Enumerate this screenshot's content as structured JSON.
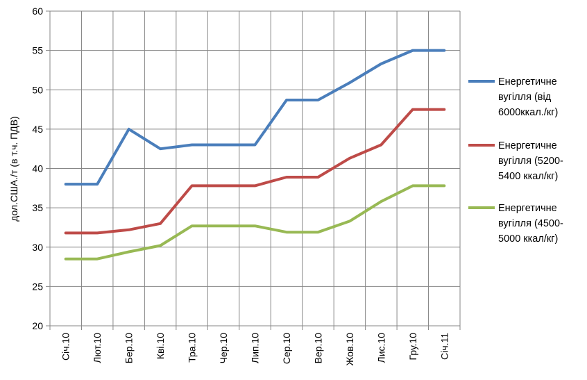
{
  "chart_data": {
    "type": "line",
    "title": "",
    "xlabel": "",
    "ylabel": "дол.США./т (в т.ч. ПДВ)",
    "ylim": [
      20,
      60
    ],
    "yticks": [
      20,
      25,
      30,
      35,
      40,
      45,
      50,
      55,
      60
    ],
    "categories": [
      "Січ.10",
      "Лют.10",
      "Бер.10",
      "Кві.10",
      "Тра.10",
      "Чер.10",
      "Лип.10",
      "Сер.10",
      "Вер.10",
      "Жов.10",
      "Лис.10",
      "Гру.10",
      "Січ.11"
    ],
    "grid": true,
    "legend_position": "right",
    "series": [
      {
        "name": "Енергетичне вугілля (від 6000ккал./кг)",
        "legend_lines": [
          "Енергетичне",
          "вугілля (від",
          "6000ккал./кг)"
        ],
        "color": "#4a7ebb",
        "values": [
          38,
          38,
          45,
          42.5,
          43,
          43,
          43,
          48.7,
          48.7,
          50.9,
          53.3,
          55,
          55
        ]
      },
      {
        "name": "Енергетичне вугілля (5200-5400 ккал/кг)",
        "legend_lines": [
          "Енергетичне",
          "вугілля (5200-",
          "5400 ккал/кг)"
        ],
        "color": "#be4b48",
        "values": [
          31.8,
          31.8,
          32.2,
          33,
          37.8,
          37.8,
          37.8,
          38.9,
          38.9,
          41.3,
          43,
          47.5,
          47.5
        ]
      },
      {
        "name": "Енергетичне вугілля (4500-5000 ккал/кг)",
        "legend_lines": [
          "Енергетичне",
          "вугілля (4500-",
          "5000 ккал/кг)"
        ],
        "color": "#98b954",
        "values": [
          28.5,
          28.5,
          29.4,
          30.2,
          32.7,
          32.7,
          32.7,
          31.9,
          31.9,
          33.3,
          35.8,
          37.8,
          37.8
        ]
      }
    ]
  }
}
